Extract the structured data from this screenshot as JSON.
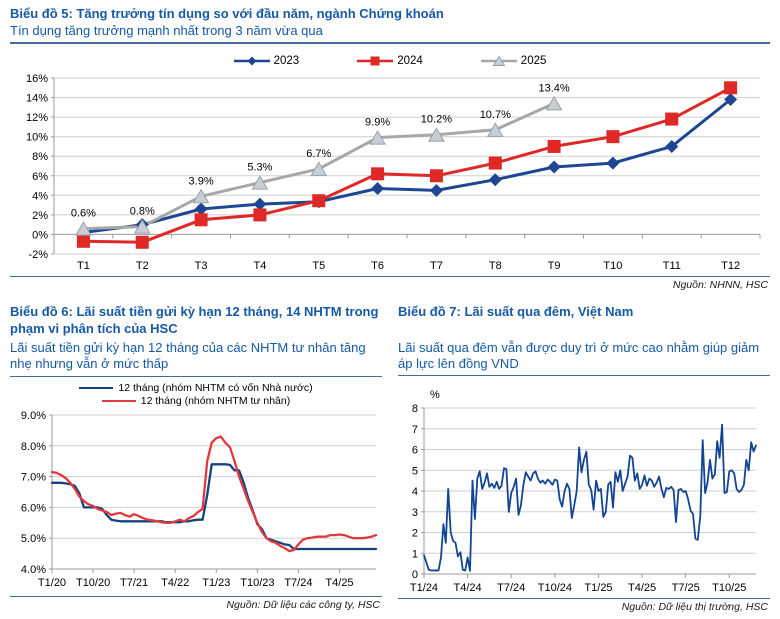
{
  "chart_data": [
    {
      "type": "line",
      "title": "Biểu đồ 5: Tăng trưởng tín dụng so với đầu năm, ngành Chứng khoán",
      "subtitle": "Tín dụng tăng trưởng mạnh nhất trong 3 năm vừa qua",
      "source": "Nguồn: NHNN, HSC",
      "categories": [
        "T1",
        "T2",
        "T3",
        "T4",
        "T5",
        "T6",
        "T7",
        "T8",
        "T9",
        "T10",
        "T11",
        "T12"
      ],
      "ylim": [
        -2,
        16
      ],
      "ytick_step": 2,
      "ytick_labels": [
        "16%",
        "14%",
        "12%",
        "10%",
        "8%",
        "6%",
        "4%",
        "2%",
        "0%",
        "-2%"
      ],
      "axis_y": 0,
      "grid": true,
      "legend_position": "top",
      "series": [
        {
          "name": "2023",
          "color": "#1D4693",
          "marker": "diamond",
          "values": [
            0.2,
            1.0,
            2.6,
            3.1,
            3.35,
            4.7,
            4.5,
            5.6,
            6.9,
            7.3,
            9.0,
            13.8
          ]
        },
        {
          "name": "2024",
          "color": "#DE2926",
          "marker": "square",
          "values": [
            -0.7,
            -0.8,
            1.5,
            2.0,
            3.45,
            6.2,
            6.0,
            7.3,
            9.0,
            10.0,
            11.8,
            15.0
          ]
        },
        {
          "name": "2025",
          "color": "#A7A7A7",
          "marker": "triangle",
          "marker_fill": "#C9CED6",
          "marker_stroke": "#9AA0A8",
          "values": [
            0.6,
            0.8,
            3.9,
            5.3,
            6.7,
            9.9,
            10.2,
            10.7,
            13.4
          ],
          "point_labels": [
            "0.6%",
            "0.8%",
            "3.9%",
            "5.3%",
            "6.7%",
            "9.9%",
            "10.2%",
            "10.7%",
            "13.4%"
          ]
        }
      ]
    },
    {
      "type": "line",
      "title": "Biểu đồ 6: Lãi suất tiền gửi kỳ hạn 12 tháng, 14 NHTM trong phạm vi phân tích của HSC",
      "subtitle": "Lãi suất tiền gửi kỳ hạn 12 tháng của các NHTM tư nhân tăng nhẹ nhưng vẫn ở mức thấp",
      "source": "Nguồn: Dữ liệu các công ty, HSC",
      "ylim": [
        4,
        9
      ],
      "ytick_step": 1,
      "ytick_labels": [
        "9.0%",
        "8.0%",
        "7.0%",
        "6.0%",
        "5.0%",
        "4.0%"
      ],
      "axis_y": 4,
      "grid": true,
      "legend_position": "top",
      "x_tick_indices": [
        0,
        9,
        18,
        27,
        36,
        45,
        54,
        63
      ],
      "x_tick_labels": [
        "T1/20",
        "T10/20",
        "T7/21",
        "T4/22",
        "T1/23",
        "T10/23",
        "T7/24",
        "T4/25"
      ],
      "series": [
        {
          "name": "12 tháng (nhóm NHTM có vốn Nhà nước)",
          "color": "#16437E",
          "values": [
            6.8,
            6.8,
            6.8,
            6.78,
            6.75,
            6.7,
            6.45,
            6.0,
            6.0,
            6.0,
            6.0,
            5.95,
            5.75,
            5.6,
            5.57,
            5.55,
            5.55,
            5.55,
            5.55,
            5.55,
            5.55,
            5.55,
            5.55,
            5.55,
            5.55,
            5.52,
            5.52,
            5.52,
            5.52,
            5.55,
            5.55,
            5.58,
            5.6,
            5.6,
            6.4,
            7.4,
            7.4,
            7.4,
            7.4,
            7.38,
            7.2,
            7.2,
            6.8,
            6.3,
            5.9,
            5.45,
            5.3,
            5.0,
            4.95,
            4.9,
            4.85,
            4.8,
            4.78,
            4.65,
            4.65,
            4.65,
            4.65,
            4.65,
            4.65,
            4.65,
            4.65,
            4.65,
            4.65,
            4.65,
            4.65,
            4.65,
            4.65,
            4.65,
            4.65,
            4.65,
            4.65,
            4.65
          ]
        },
        {
          "name": "12 tháng (nhóm NHTM tư nhân)",
          "color": "#E1393C",
          "values": [
            7.15,
            7.12,
            7.05,
            6.95,
            6.8,
            6.6,
            6.35,
            6.2,
            6.1,
            6.05,
            5.95,
            5.9,
            5.85,
            5.75,
            5.8,
            5.82,
            5.75,
            5.7,
            5.78,
            5.72,
            5.65,
            5.6,
            5.58,
            5.55,
            5.52,
            5.5,
            5.5,
            5.55,
            5.6,
            5.55,
            5.65,
            5.72,
            5.85,
            5.95,
            7.5,
            8.1,
            8.25,
            8.3,
            8.1,
            7.95,
            7.5,
            7.0,
            6.6,
            6.2,
            5.85,
            5.5,
            5.2,
            5.0,
            4.9,
            4.85,
            4.75,
            4.68,
            4.58,
            4.62,
            4.8,
            4.95,
            5.0,
            5.02,
            5.05,
            5.05,
            5.05,
            5.1,
            5.1,
            5.12,
            5.1,
            5.05,
            5.0,
            5.0,
            5.0,
            5.02,
            5.05,
            5.1
          ]
        }
      ]
    },
    {
      "type": "line",
      "title": "Biểu đồ 7: Lãi suất qua đêm, Việt Nam",
      "subtitle": "Lãi suất qua đêm vẫn được duy trì ở mức cao nhằm giúp giảm áp lực lên đồng VND",
      "source": "Nguồn: Dữ liệu thị trường, HSC",
      "ylabel": "%",
      "ylim": [
        0,
        8
      ],
      "ytick_step": 1,
      "ytick_labels": [
        "8",
        "7",
        "6",
        "5",
        "4",
        "3",
        "2",
        "1",
        "0"
      ],
      "axis_y": 0,
      "grid": true,
      "x_tick_indices": [
        0,
        18,
        36,
        54,
        72,
        90,
        108,
        126
      ],
      "x_tick_labels": [
        "T1/24",
        "T4/24",
        "T7/24",
        "T10/24",
        "T1/25",
        "T4/25",
        "T7/25",
        "T10/25"
      ],
      "series": [
        {
          "color": "#134593",
          "values": [
            0.9,
            0.55,
            0.2,
            0.17,
            0.17,
            0.18,
            0.17,
            0.8,
            2.4,
            1.5,
            4.1,
            2.0,
            1.6,
            1.5,
            0.85,
            1.05,
            0.2,
            0.17,
            0.8,
            0.15,
            4.5,
            2.65,
            4.6,
            4.95,
            4.1,
            4.4,
            4.85,
            4.2,
            4.35,
            4.15,
            4.45,
            4.1,
            4.25,
            5.1,
            5.05,
            3.0,
            3.9,
            4.2,
            4.6,
            2.85,
            3.3,
            4.3,
            4.9,
            4.7,
            4.5,
            4.85,
            4.95,
            4.6,
            4.4,
            4.5,
            4.35,
            4.55,
            4.45,
            4.3,
            4.55,
            4.5,
            3.6,
            3.25,
            4.0,
            4.35,
            4.1,
            2.7,
            3.3,
            4.0,
            6.1,
            4.9,
            5.5,
            5.9,
            4.3,
            4.05,
            3.1,
            4.5,
            4.0,
            4.1,
            2.75,
            3.0,
            4.3,
            4.45,
            3.2,
            4.9,
            4.45,
            5.0,
            4.0,
            4.35,
            4.7,
            5.7,
            5.6,
            4.5,
            4.85,
            4.1,
            4.3,
            4.75,
            4.25,
            4.6,
            4.5,
            4.2,
            4.4,
            4.7,
            4.1,
            3.7,
            4.15,
            4.1,
            4.2,
            4.05,
            2.5,
            4.05,
            4.1,
            3.95,
            4.0,
            3.6,
            3.05,
            2.9,
            1.7,
            1.65,
            2.8,
            6.45,
            3.9,
            4.4,
            5.5,
            4.6,
            4.8,
            6.4,
            5.6,
            7.2,
            3.9,
            3.95,
            4.95,
            5.0,
            4.85,
            4.1,
            3.95,
            4.05,
            4.3,
            5.5,
            5.0,
            6.35,
            5.9,
            6.2
          ]
        }
      ]
    }
  ],
  "colors": {
    "heading_blue": "#1659A5",
    "rule_blue": "#44699D",
    "series_2023": "#1D4693",
    "series_2024": "#DE2926",
    "series_2025": "#A7A7A7",
    "grid_gray": "#CFCFCF"
  }
}
